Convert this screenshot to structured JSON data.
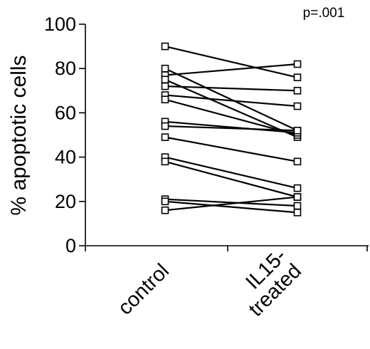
{
  "chart_data": {
    "type": "line",
    "ylabel": "% apoptotic cells",
    "xlabel": "",
    "annotation": "p=.001",
    "categories": [
      "control",
      "IL15-treated"
    ],
    "category_label_lines": [
      [
        "control"
      ],
      [
        "IL15-",
        "treated"
      ]
    ],
    "ylim": [
      0,
      100
    ],
    "yticks": [
      0,
      20,
      40,
      60,
      80,
      100
    ],
    "grid": false,
    "marker": "open-square",
    "pairs": [
      [
        90,
        76
      ],
      [
        80,
        52
      ],
      [
        77,
        82
      ],
      [
        75,
        49
      ],
      [
        72,
        70
      ],
      [
        68,
        63
      ],
      [
        66,
        50
      ],
      [
        56,
        51
      ],
      [
        54,
        52
      ],
      [
        49,
        38
      ],
      [
        40,
        26
      ],
      [
        38,
        22
      ],
      [
        21,
        18
      ],
      [
        20,
        15
      ],
      [
        16,
        22
      ]
    ]
  }
}
